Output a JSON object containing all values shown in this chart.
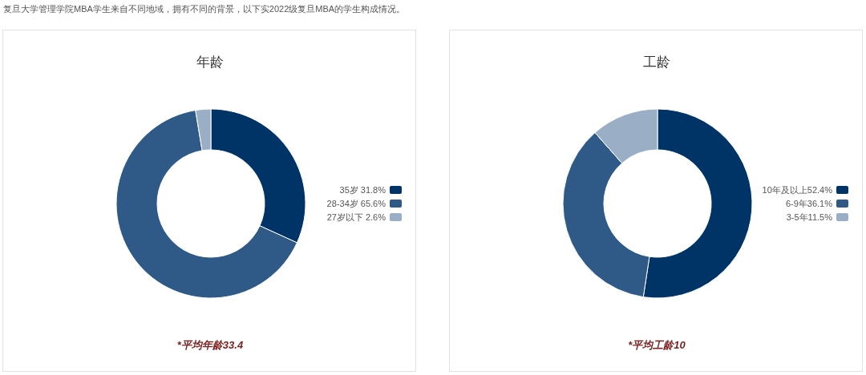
{
  "chart_data": [
    {
      "type": "donut",
      "title": "年龄",
      "categories": [
        "35岁 31.8%",
        "28-34岁 65.6%",
        "27岁以下 2.6%"
      ],
      "values": [
        31.8,
        65.6,
        2.6
      ],
      "colors": [
        "#003366",
        "#2f5a87",
        "#9aaec6"
      ],
      "legend": "right",
      "annotations": [
        "复旦大学管理学院MBA学生来自不同地域，拥有不同的背景，以下实2022级复旦MBA的学生构成情况。",
        "*平均年龄33.4"
      ]
    },
    {
      "type": "donut",
      "title": "工龄",
      "categories": [
        "10年及以上52.4%",
        "6-9年36.1%",
        "3-5年11.5%"
      ],
      "values": [
        52.4,
        36.1,
        11.5
      ],
      "colors": [
        "#003366",
        "#2f5a87",
        "#9aaec6"
      ],
      "legend": "right",
      "annotations": [
        "*平均工龄10"
      ]
    }
  ]
}
